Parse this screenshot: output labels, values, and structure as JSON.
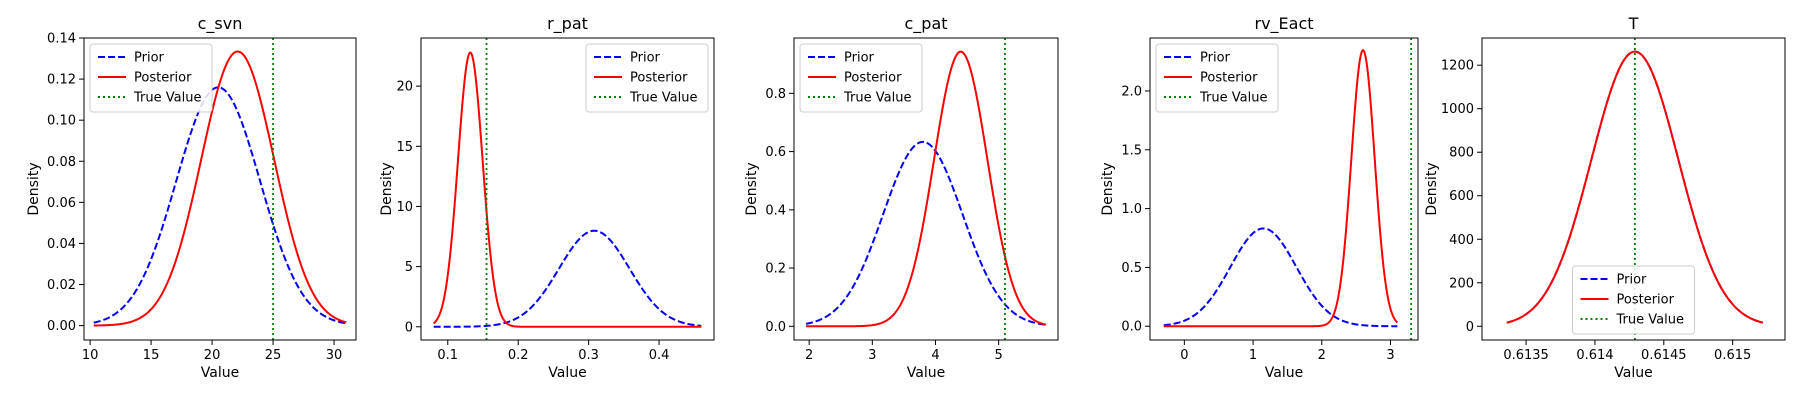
{
  "legend_labels": {
    "prior": "Prior",
    "posterior": "Posterior",
    "true_value": "True Value"
  },
  "colors": {
    "prior": "#0000ff",
    "posterior": "#ff0000",
    "true_value": "#008000"
  },
  "chart_data": [
    {
      "type": "line",
      "title": "c_svn",
      "xlabel": "Value",
      "ylabel": "Density",
      "xlim": [
        9.5,
        31.8
      ],
      "ylim": [
        -0.007,
        0.14
      ],
      "xticks": [
        10,
        15,
        20,
        25,
        30
      ],
      "yticks": [
        0.0,
        0.02,
        0.04,
        0.06,
        0.08,
        0.1,
        0.12,
        0.14
      ],
      "yticklabels": [
        "0.00",
        "0.02",
        "0.04",
        "0.06",
        "0.08",
        "0.10",
        "0.12",
        "0.14"
      ],
      "xrange": [
        10.3,
        31.0
      ],
      "prior": {
        "mean": 20.5,
        "sd": 3.44
      },
      "posterior": {
        "mean": 22.1,
        "sd": 2.99
      },
      "true_value": 25.0,
      "legend_position": "upper-left"
    },
    {
      "type": "line",
      "title": "r_pat",
      "xlabel": "Value",
      "ylabel": "Density",
      "xlim": [
        0.062,
        0.478
      ],
      "ylim": [
        -1.1,
        24.0
      ],
      "xticks": [
        0.1,
        0.2,
        0.3,
        0.4
      ],
      "yticks": [
        0,
        5,
        10,
        15,
        20
      ],
      "yticklabels": [
        "0",
        "5",
        "10",
        "15",
        "20"
      ],
      "xrange": [
        0.08,
        0.46
      ],
      "prior": {
        "mean": 0.308,
        "sd": 0.05
      },
      "posterior": {
        "mean": 0.132,
        "sd": 0.0175
      },
      "true_value": 0.155,
      "legend_position": "upper-right"
    },
    {
      "type": "line",
      "title": "c_pat",
      "xlabel": "Value",
      "ylabel": "Density",
      "xlim": [
        1.76,
        5.94
      ],
      "ylim": [
        -0.047,
        0.99
      ],
      "xticks": [
        2,
        3,
        4,
        5
      ],
      "yticks": [
        0.0,
        0.2,
        0.4,
        0.6,
        0.8
      ],
      "yticklabels": [
        "0.0",
        "0.2",
        "0.4",
        "0.6",
        "0.8"
      ],
      "xrange": [
        1.95,
        5.75
      ],
      "prior": {
        "mean": 3.8,
        "sd": 0.63
      },
      "posterior": {
        "mean": 4.4,
        "sd": 0.423
      },
      "true_value": 5.1,
      "legend_position": "upper-left"
    },
    {
      "type": "line",
      "title": "rv_Eact",
      "xlabel": "Value",
      "ylabel": "Density",
      "xlim": [
        -0.5,
        3.4
      ],
      "ylim": [
        -0.117,
        2.45
      ],
      "xticks": [
        0,
        1,
        2,
        3
      ],
      "yticks": [
        0.0,
        0.5,
        1.0,
        1.5,
        2.0
      ],
      "yticklabels": [
        "0.0",
        "0.5",
        "1.0",
        "1.5",
        "2.0"
      ],
      "xrange": [
        -0.3,
        3.1
      ],
      "prior": {
        "mean": 1.15,
        "sd": 0.48
      },
      "posterior": {
        "mean": 2.6,
        "sd": 0.17
      },
      "true_value": 3.3,
      "legend_position": "upper-left"
    },
    {
      "type": "line",
      "title": "T",
      "xlabel": "Value",
      "ylabel": "Density",
      "xlim": [
        0.61318,
        0.61538
      ],
      "ylim": [
        -63,
        1325
      ],
      "xticks": [
        0.6135,
        0.614,
        0.6145,
        0.615
      ],
      "yticks": [
        0,
        200,
        400,
        600,
        800,
        1000,
        1200
      ],
      "yticklabels": [
        "0",
        "200",
        "400",
        "600",
        "800",
        "1000",
        "1200"
      ],
      "xrange": [
        0.61336,
        0.61522
      ],
      "prior": {
        "mean": 0.61429,
        "sd": 0.000316
      },
      "posterior": {
        "mean": 0.61429,
        "sd": 0.000316
      },
      "true_value": 0.61429,
      "legend_position": "lower-center"
    }
  ]
}
